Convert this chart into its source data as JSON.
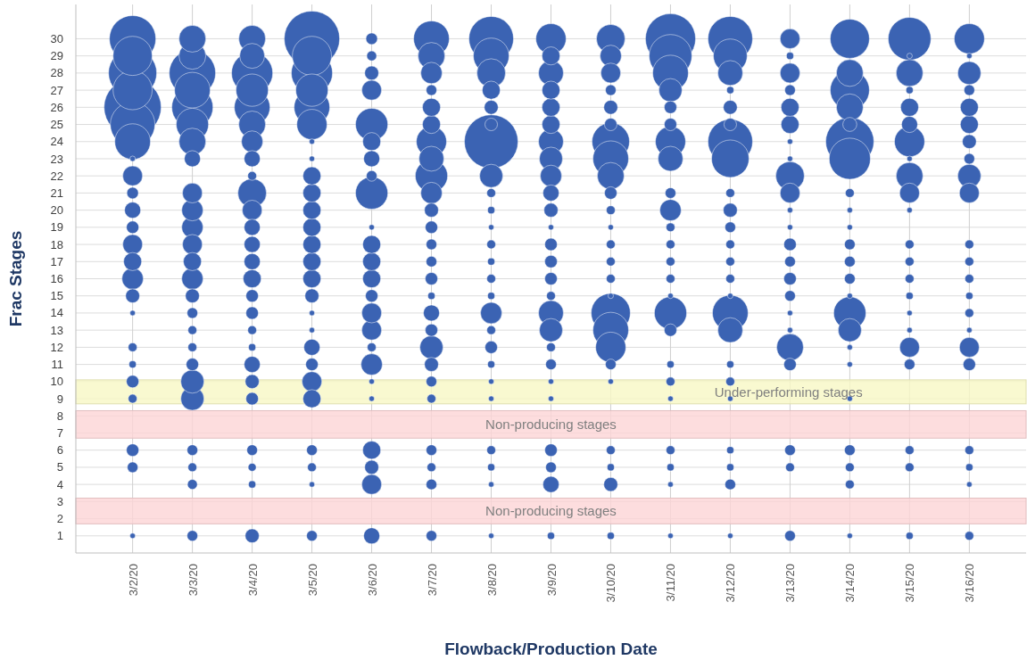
{
  "chart_data": {
    "type": "bubble",
    "xlabel": "Flowback/Production Date",
    "ylabel": "Frac Stages",
    "categories": [
      "3/2/20",
      "3/3/20",
      "3/4/20",
      "3/5/20",
      "3/6/20",
      "3/7/20",
      "3/8/20",
      "3/9/20",
      "3/10/20",
      "3/11/20",
      "3/12/20",
      "3/13/20",
      "3/14/20",
      "3/15/20",
      "3/16/20"
    ],
    "ylim": [
      0,
      32
    ],
    "yticks": [
      1,
      2,
      3,
      4,
      5,
      6,
      7,
      8,
      9,
      10,
      11,
      12,
      13,
      14,
      15,
      16,
      17,
      18,
      19,
      20,
      21,
      22,
      23,
      24,
      25,
      26,
      27,
      28,
      29,
      30
    ],
    "grid": true,
    "bands": [
      {
        "axis": "y",
        "from": 8.7,
        "to": 10.1,
        "label": "Under-performing stages",
        "color": "#f8f8c4"
      },
      {
        "axis": "y",
        "from": 6.7,
        "to": 8.3,
        "label": "Non-producing stages",
        "color": "#fcd4d6"
      },
      {
        "axis": "y",
        "from": 1.7,
        "to": 3.2,
        "label": "Non-producing stages",
        "color": "#fcd4d6"
      }
    ],
    "series": [
      {
        "color": "#3b63b3",
        "values": [
          1,
          1,
          1,
          1,
          1,
          1,
          1,
          1,
          1,
          1,
          1,
          1,
          1,
          1,
          1
        ],
        "sizes": [
          0.009,
          0.035,
          0.06,
          0.035,
          0.08,
          0.035,
          0.009,
          0.016,
          0.016,
          0.009,
          0.009,
          0.035,
          0.009,
          0.016,
          0.024
        ]
      },
      {
        "color": "#3b63b3",
        "values": [
          null,
          4,
          4,
          4,
          4,
          4,
          4,
          4,
          4,
          4,
          4,
          null,
          4,
          null,
          4
        ],
        "sizes": [
          null,
          0.03,
          0.016,
          0.009,
          0.12,
          0.035,
          0.009,
          0.08,
          0.06,
          0.009,
          0.035,
          null,
          0.024,
          null,
          0.009
        ]
      },
      {
        "color": "#3b63b3",
        "values": [
          5,
          5,
          5,
          5,
          5,
          5,
          5,
          5,
          5,
          5,
          5,
          5,
          5,
          5,
          5
        ],
        "sizes": [
          0.035,
          0.024,
          0.02,
          0.024,
          0.06,
          0.024,
          0.016,
          0.035,
          0.016,
          0.016,
          0.016,
          0.024,
          0.024,
          0.024,
          0.016
        ]
      },
      {
        "color": "#3b63b3",
        "values": [
          6,
          6,
          6,
          6,
          6,
          6,
          6,
          6,
          6,
          6,
          6,
          6,
          6,
          6,
          6
        ],
        "sizes": [
          0.048,
          0.035,
          0.035,
          0.035,
          0.1,
          0.035,
          0.024,
          0.048,
          0.024,
          0.024,
          0.016,
          0.035,
          0.035,
          0.024,
          0.024
        ]
      },
      {
        "color": "#3b63b3",
        "values": [
          9,
          9,
          9,
          9,
          9,
          9,
          9,
          9,
          null,
          9,
          9,
          null,
          9,
          null,
          null
        ],
        "sizes": [
          0.024,
          0.165,
          0.048,
          0.1,
          0.009,
          0.024,
          0.009,
          0.009,
          null,
          0.009,
          0.009,
          null,
          0.009,
          null,
          null
        ]
      },
      {
        "color": "#3b63b3",
        "values": [
          10,
          10,
          10,
          10,
          10,
          10,
          10,
          10,
          10,
          10,
          10,
          null,
          null,
          null,
          null
        ],
        "sizes": [
          0.048,
          0.165,
          0.06,
          0.12,
          0.009,
          0.035,
          0.009,
          0.009,
          0.009,
          0.024,
          0.024,
          null,
          null,
          null,
          null
        ]
      },
      {
        "color": "#3b63b3",
        "values": [
          11,
          11,
          11,
          11,
          11,
          11,
          11,
          11,
          11,
          11,
          11,
          11,
          11,
          11,
          11
        ],
        "sizes": [
          0.016,
          0.048,
          0.08,
          0.048,
          0.14,
          0.06,
          0.016,
          0.035,
          0.035,
          0.016,
          0.016,
          0.048,
          0.009,
          0.035,
          0.048
        ]
      },
      {
        "color": "#3b63b3",
        "values": [
          12,
          12,
          12,
          12,
          12,
          12,
          12,
          12,
          12,
          null,
          null,
          12,
          12,
          12,
          12
        ],
        "sizes": [
          0.024,
          0.024,
          0.016,
          0.08,
          0.024,
          0.165,
          0.048,
          0.024,
          0.28,
          null,
          null,
          0.22,
          0.009,
          0.12,
          0.12
        ]
      },
      {
        "color": "#3b63b3",
        "values": [
          null,
          13,
          13,
          13,
          13,
          13,
          13,
          13,
          13,
          13,
          13,
          13,
          13,
          13,
          13
        ],
        "sizes": [
          null,
          0.024,
          0.024,
          0.009,
          0.12,
          0.048,
          0.024,
          0.165,
          0.39,
          0.048,
          0.19,
          0.009,
          0.165,
          0.009,
          0.009
        ]
      },
      {
        "color": "#3b63b3",
        "values": [
          14,
          14,
          14,
          14,
          14,
          14,
          14,
          14,
          14,
          14,
          14,
          14,
          14,
          14,
          14
        ],
        "sizes": [
          0.009,
          0.035,
          0.048,
          0.009,
          0.12,
          0.08,
          0.14,
          0.19,
          0.47,
          0.32,
          0.39,
          0.009,
          0.32,
          0.009,
          0.024
        ]
      },
      {
        "color": "#3b63b3",
        "values": [
          15,
          15,
          15,
          15,
          15,
          15,
          15,
          15,
          15,
          15,
          15,
          15,
          15,
          15,
          15
        ],
        "sizes": [
          0.06,
          0.06,
          0.048,
          0.06,
          0.048,
          0.016,
          0.016,
          0.024,
          0.009,
          0.009,
          0.009,
          0.035,
          0.009,
          0.016,
          0.016
        ]
      },
      {
        "color": "#3b63b3",
        "values": [
          16,
          16,
          16,
          16,
          16,
          16,
          16,
          16,
          16,
          16,
          16,
          16,
          16,
          16,
          16
        ],
        "sizes": [
          0.14,
          0.14,
          0.1,
          0.1,
          0.1,
          0.048,
          0.024,
          0.048,
          0.024,
          0.024,
          0.024,
          0.048,
          0.035,
          0.024,
          0.024
        ]
      },
      {
        "color": "#3b63b3",
        "values": [
          17,
          17,
          17,
          17,
          17,
          17,
          17,
          17,
          17,
          17,
          17,
          17,
          17,
          17,
          17
        ],
        "sizes": [
          0.1,
          0.1,
          0.08,
          0.1,
          0.1,
          0.035,
          0.016,
          0.048,
          0.024,
          0.024,
          0.024,
          0.035,
          0.035,
          0.024,
          0.024
        ]
      },
      {
        "color": "#3b63b3",
        "values": [
          18,
          18,
          18,
          18,
          18,
          18,
          18,
          18,
          18,
          18,
          18,
          18,
          18,
          18,
          18
        ],
        "sizes": [
          0.12,
          0.12,
          0.08,
          0.1,
          0.1,
          0.035,
          0.024,
          0.048,
          0.024,
          0.024,
          0.024,
          0.048,
          0.035,
          0.024,
          0.024
        ]
      },
      {
        "color": "#3b63b3",
        "values": [
          19,
          19,
          19,
          19,
          19,
          19,
          19,
          19,
          19,
          19,
          19,
          19,
          19,
          null,
          null
        ],
        "sizes": [
          0.048,
          0.14,
          0.08,
          0.1,
          0.009,
          0.048,
          0.009,
          0.009,
          0.009,
          0.024,
          0.035,
          0.009,
          0.009,
          null,
          null
        ]
      },
      {
        "color": "#3b63b3",
        "values": [
          20,
          20,
          20,
          20,
          null,
          20,
          20,
          20,
          20,
          20,
          20,
          20,
          20,
          20,
          null
        ],
        "sizes": [
          0.08,
          0.14,
          0.12,
          0.1,
          null,
          0.06,
          0.016,
          0.06,
          0.024,
          0.14,
          0.06,
          0.009,
          0.009,
          0.009,
          null
        ]
      },
      {
        "color": "#3b63b3",
        "values": [
          21,
          21,
          21,
          21,
          21,
          21,
          21,
          21,
          21,
          21,
          21,
          21,
          21,
          21,
          21
        ],
        "sizes": [
          0.041,
          0.12,
          0.25,
          0.1,
          0.32,
          0.14,
          0.024,
          0.08,
          0.048,
          0.035,
          0.024,
          0.12,
          0.024,
          0.12,
          0.12
        ]
      },
      {
        "color": "#3b63b3",
        "values": [
          22,
          null,
          22,
          22,
          22,
          22,
          22,
          22,
          22,
          null,
          null,
          22,
          null,
          22,
          22
        ],
        "sizes": [
          0.12,
          null,
          0.024,
          0.1,
          0.035,
          0.32,
          0.165,
          0.14,
          0.22,
          null,
          null,
          0.25,
          null,
          0.22,
          0.165
        ]
      },
      {
        "color": "#3b63b3",
        "values": [
          23,
          23,
          23,
          23,
          23,
          23,
          null,
          23,
          23,
          23,
          23,
          23,
          23,
          23,
          23
        ],
        "sizes": [
          0.009,
          0.08,
          0.08,
          0.009,
          0.08,
          0.19,
          null,
          0.165,
          0.39,
          0.19,
          0.43,
          0.009,
          0.52,
          0.009,
          0.035
        ]
      },
      {
        "color": "#3b63b3",
        "values": [
          24,
          24,
          24,
          24,
          24,
          24,
          24,
          24,
          24,
          24,
          24,
          24,
          24,
          24,
          24
        ],
        "sizes": [
          0.39,
          0.22,
          0.14,
          0.009,
          0.1,
          0.28,
          0.88,
          0.19,
          0.43,
          0.28,
          0.61,
          0.009,
          0.71,
          0.28,
          0.06
        ]
      },
      {
        "color": "#3b63b3",
        "values": [
          25,
          25,
          25,
          25,
          25,
          25,
          25,
          25,
          25,
          25,
          25,
          25,
          25,
          25,
          25
        ],
        "sizes": [
          0.61,
          0.32,
          0.22,
          0.28,
          0.32,
          0.1,
          0.048,
          0.1,
          0.048,
          0.048,
          0.048,
          0.1,
          0.06,
          0.08,
          0.1
        ]
      },
      {
        "color": "#3b63b3",
        "values": [
          26,
          26,
          26,
          26,
          null,
          26,
          26,
          26,
          26,
          26,
          26,
          26,
          26,
          26,
          26
        ],
        "sizes": [
          1,
          0.52,
          0.39,
          0.39,
          null,
          0.1,
          0.06,
          0.1,
          0.06,
          0.048,
          0.06,
          0.1,
          0.22,
          0.1,
          0.1
        ]
      },
      {
        "color": "#3b63b3",
        "values": [
          27,
          27,
          27,
          27,
          27,
          27,
          27,
          27,
          27,
          27,
          27,
          27,
          27,
          27,
          27
        ],
        "sizes": [
          0.47,
          0.39,
          0.32,
          0.32,
          0.12,
          0.035,
          0.1,
          0.1,
          0.035,
          0.165,
          0.016,
          0.035,
          0.47,
          0.016,
          0.035
        ]
      },
      {
        "color": "#3b63b3",
        "values": [
          28,
          28,
          28,
          28,
          28,
          28,
          28,
          28,
          28,
          28,
          28,
          28,
          28,
          28,
          28
        ],
        "sizes": [
          0.71,
          0.66,
          0.52,
          0.52,
          0.06,
          0.14,
          0.25,
          0.19,
          0.12,
          0.39,
          0.19,
          0.12,
          0.22,
          0.22,
          0.165
        ]
      },
      {
        "color": "#3b63b3",
        "values": [
          29,
          29,
          29,
          29,
          29,
          29,
          29,
          29,
          29,
          29,
          29,
          29,
          null,
          29,
          29
        ],
        "sizes": [
          0.47,
          0.22,
          0.19,
          0.47,
          0.03,
          0.22,
          0.39,
          0.1,
          0.14,
          0.56,
          0.35,
          0.016,
          null,
          0.009,
          0.009
        ]
      },
      {
        "color": "#3b63b3",
        "values": [
          30,
          30,
          30,
          30,
          30,
          30,
          30,
          30,
          30,
          30,
          30,
          30,
          30,
          30,
          30
        ],
        "sizes": [
          0.66,
          0.22,
          0.22,
          0.94,
          0.041,
          0.39,
          0.61,
          0.28,
          0.25,
          0.77,
          0.61,
          0.12,
          0.47,
          0.56,
          0.28
        ]
      }
    ]
  }
}
